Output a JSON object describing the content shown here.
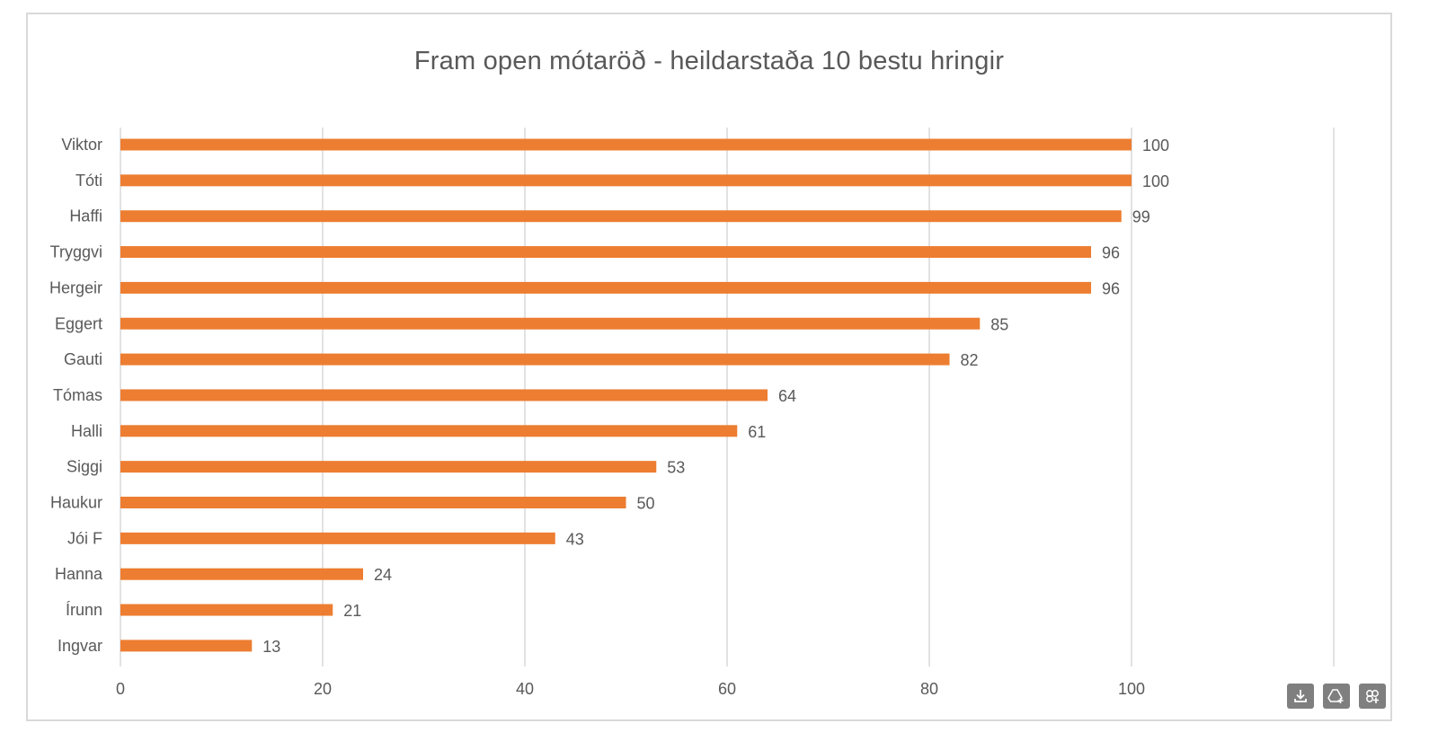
{
  "chart_data": {
    "type": "bar",
    "orientation": "horizontal",
    "title": "Fram open mótaröð - heildarstaða 10 bestu hringir",
    "categories": [
      "Viktor",
      "Tóti",
      "Haffi",
      "Tryggvi",
      "Hergeir",
      "Eggert",
      "Gauti",
      "Tómas",
      "Halli",
      "Siggi",
      "Haukur",
      "Jói F",
      "Hanna",
      "Írunn",
      "Ingvar"
    ],
    "values": [
      100,
      100,
      99,
      96,
      96,
      85,
      82,
      64,
      61,
      53,
      50,
      43,
      24,
      21,
      13
    ],
    "xlim": [
      0,
      120
    ],
    "x_ticks": [
      "0",
      "20",
      "40",
      "60",
      "80",
      "100"
    ],
    "grid": true,
    "bar_color": "#ED7D31",
    "data_labels": true
  },
  "toolbar": {
    "icons": [
      "download-icon",
      "add-to-drive-icon",
      "pin-icon"
    ]
  }
}
